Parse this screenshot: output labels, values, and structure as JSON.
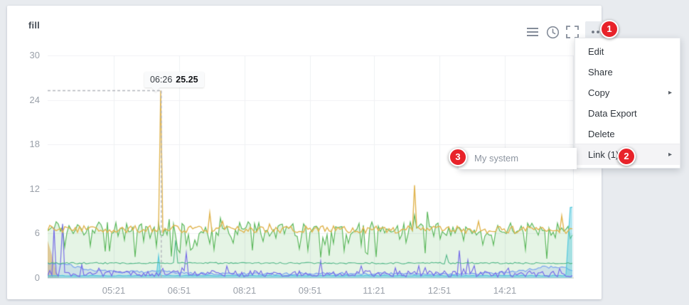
{
  "panel": {
    "title": "fill"
  },
  "toolbar": {
    "icons": [
      "menu-icon",
      "clock-icon",
      "fullscreen-icon",
      "ellipsis-icon"
    ]
  },
  "tooltip": {
    "time": "06:26",
    "value": "25.25"
  },
  "menu": {
    "submenu_arrow": "▸",
    "items": [
      {
        "label": "Edit"
      },
      {
        "label": "Share"
      },
      {
        "label": "Copy",
        "submenu": true
      },
      {
        "label": "Data Export"
      },
      {
        "label": "Delete"
      },
      {
        "label": "Link (1)",
        "submenu": true,
        "active": true
      }
    ]
  },
  "submenu": {
    "items": [
      {
        "label": "My system"
      }
    ]
  },
  "annotations": {
    "step1": "1",
    "step2": "2",
    "step3": "3"
  },
  "chart_data": {
    "type": "line",
    "title": "fill",
    "x_ticks": [
      "05:21",
      "06:51",
      "08:21",
      "09:51",
      "11:21",
      "12:51",
      "14:21"
    ],
    "y_ticks": [
      0,
      6,
      12,
      18,
      24,
      30
    ],
    "ylim": [
      0,
      30
    ],
    "x_range_approx": [
      "03:51",
      "15:55"
    ],
    "grid": true,
    "legend": "none",
    "crosshair": {
      "time": "06:26",
      "value": 25.25,
      "x_frac": 0.216
    },
    "series": [
      {
        "name": "orange-start-area",
        "color": "rgba(237,161,79,0)",
        "width": 0,
        "fill": "rgba(242,166,90,0.55)",
        "step": 4,
        "amp": 0,
        "anchors": [
          [
            0,
            5
          ],
          [
            0.008,
            3.2
          ],
          [
            0.015,
            1.2
          ],
          [
            0.02,
            0
          ],
          [
            1,
            0
          ]
        ]
      },
      {
        "name": "green-area",
        "color": "#5cb85c",
        "width": 1.2,
        "fill": "rgba(92,184,92,0.16)",
        "step": 3,
        "amp": 1.0,
        "dip": {
          "p": 0.34,
          "a": 3.2
        },
        "up": {
          "p": 0.09,
          "a": 2.0
        },
        "anchors": [
          [
            0,
            6.6
          ],
          [
            1,
            6.6
          ]
        ]
      },
      {
        "name": "blue-line",
        "color": "#7aa4ef",
        "width": 1.2,
        "fill": "rgba(125,165,240,0.22)",
        "step": 3,
        "amp": 0.16,
        "anchors": [
          [
            0,
            2.05
          ],
          [
            0.03,
            1.9
          ],
          [
            0.08,
            1.1
          ],
          [
            0.13,
            0.8
          ],
          [
            0.22,
            0.85
          ],
          [
            0.3,
            0.55
          ],
          [
            0.55,
            0.6
          ],
          [
            0.82,
            0.55
          ],
          [
            0.9,
            0.9
          ],
          [
            0.94,
            1.5
          ],
          [
            0.98,
            1.4
          ],
          [
            1,
            1.05
          ]
        ]
      },
      {
        "name": "cyan-area",
        "color": "#55c8dd",
        "width": 1.2,
        "fill": "rgba(85,200,221,0.45)",
        "step": 3,
        "amp": 0.05,
        "anchors": [
          [
            0,
            0.32
          ],
          [
            0.985,
            0.32
          ],
          [
            0.993,
            9.5
          ],
          [
            1,
            9.5
          ]
        ],
        "spikes": [
          [
            0.211,
            3.0
          ]
        ]
      },
      {
        "name": "purple-line",
        "color": "#776de8",
        "width": 1.2,
        "fill": null,
        "step": 3,
        "amp": 0.42,
        "up": {
          "p": 0.05,
          "a": 1.1
        },
        "anchors": [
          [
            0,
            0.6
          ],
          [
            1,
            0.55
          ]
        ],
        "spikes": [
          [
            0.012,
            6.8
          ],
          [
            0.03,
            7.3
          ],
          [
            0.262,
            3.4
          ],
          [
            0.517,
            2.3
          ],
          [
            0.781,
            3.7
          ],
          [
            0.8,
            2.4
          ]
        ]
      },
      {
        "name": "teal-line",
        "color": "#52b788",
        "width": 1.1,
        "fill": null,
        "step": 3,
        "amp": 0.1,
        "anchors": [
          [
            0,
            2.0
          ],
          [
            1,
            2.0
          ]
        ],
        "spikes": [
          [
            0.245,
            5.1
          ],
          [
            0.757,
            3.1
          ]
        ]
      },
      {
        "name": "yellow-line",
        "color": "#e0b44e",
        "width": 1.4,
        "fill": null,
        "step": 3,
        "amp": 0.5,
        "up": {
          "p": 0.05,
          "a": 1.0
        },
        "anchors": [
          [
            0,
            6.6
          ],
          [
            1,
            6.5
          ]
        ],
        "spikes": [
          [
            0.216,
            25.25
          ],
          [
            0.31,
            8.8
          ],
          [
            0.697,
            12.5
          ],
          [
            0.975,
            8.4
          ]
        ]
      }
    ]
  }
}
